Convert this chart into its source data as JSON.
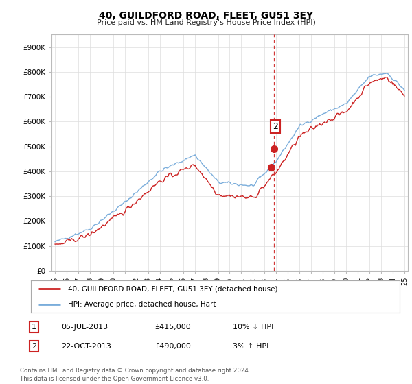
{
  "title": "40, GUILDFORD ROAD, FLEET, GU51 3EY",
  "subtitle": "Price paid vs. HM Land Registry's House Price Index (HPI)",
  "ylabel_ticks": [
    "£0",
    "£100K",
    "£200K",
    "£300K",
    "£400K",
    "£500K",
    "£600K",
    "£700K",
    "£800K",
    "£900K"
  ],
  "ytick_values": [
    0,
    100000,
    200000,
    300000,
    400000,
    500000,
    600000,
    700000,
    800000,
    900000
  ],
  "ylim": [
    0,
    950000
  ],
  "hpi_color": "#7aaddb",
  "price_color": "#cc2222",
  "vline_color": "#cc2222",
  "t1_year": 2013.54,
  "t2_year": 2013.79,
  "p1": 415000,
  "p2": 490000,
  "legend_entry1": "40, GUILDFORD ROAD, FLEET, GU51 3EY (detached house)",
  "legend_entry2": "HPI: Average price, detached house, Hart",
  "table_row1": [
    "1",
    "05-JUL-2013",
    "£415,000",
    "10% ↓ HPI"
  ],
  "table_row2": [
    "2",
    "22-OCT-2013",
    "£490,000",
    "3% ↑ HPI"
  ],
  "footnote": "Contains HM Land Registry data © Crown copyright and database right 2024.\nThis data is licensed under the Open Government Licence v3.0.",
  "background_color": "#ffffff",
  "grid_color": "#dddddd",
  "xmin": 1994.7,
  "xmax": 2025.3,
  "year_start": 1995,
  "year_end": 2025
}
